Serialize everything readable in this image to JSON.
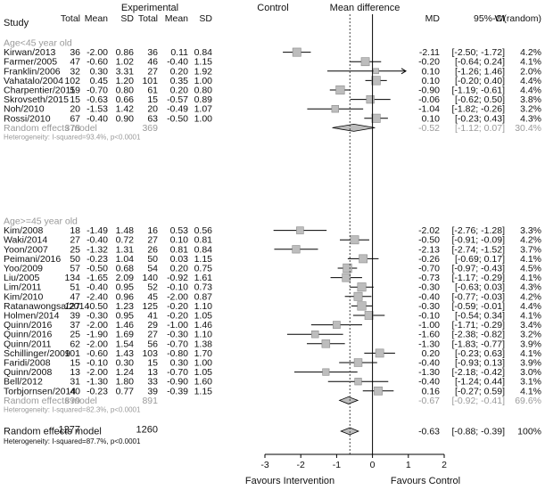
{
  "chart_data": {
    "type": "forest",
    "headers": {
      "study": "Study",
      "experimental": "Experimental",
      "control": "Control",
      "total": "Total",
      "mean": "Mean",
      "sd": "SD",
      "effect": "Mean difference",
      "md": "MD",
      "ci": "95%-CI",
      "weight": "W(random)"
    },
    "x_axis": {
      "ticks": [
        -3,
        -2,
        -1,
        0,
        1,
        2
      ],
      "range": [
        -3,
        2
      ],
      "left_label": "Favours Intervention",
      "right_label": "Favours Control"
    },
    "subgroups": [
      {
        "label": "Age<45 year old",
        "studies": [
          {
            "study": "Kirwan/2013",
            "e_total": "36",
            "e_mean": "-2.00",
            "e_sd": "0.86",
            "c_total": "36",
            "c_mean": "0.11",
            "c_sd": "0.84",
            "md": -2.11,
            "lo": -2.5,
            "hi": -1.72,
            "md_text": "-2.11",
            "ci_text": "[-2.50; -1.72]",
            "weight": "4.2%"
          },
          {
            "study": "Farmer/2005",
            "e_total": "47",
            "e_mean": "-0.60",
            "e_sd": "1.02",
            "c_total": "46",
            "c_mean": "-0.40",
            "c_sd": "1.15",
            "md": -0.2,
            "lo": -0.64,
            "hi": 0.24,
            "md_text": "-0.20",
            "ci_text": "[-0.64; 0.24]",
            "weight": "4.1%"
          },
          {
            "study": "Franklin/2006",
            "e_total": "32",
            "e_mean": "0.30",
            "e_sd": "3.31",
            "c_total": "27",
            "c_mean": "0.20",
            "c_sd": "1.92",
            "md": 0.1,
            "lo": -1.26,
            "hi": 1.46,
            "md_text": "0.10",
            "ci_text": "[-1.26; 1.46]",
            "weight": "2.0%"
          },
          {
            "study": "Vahatalo/2004",
            "e_total": "102",
            "e_mean": "0.45",
            "e_sd": "1.20",
            "c_total": "101",
            "c_mean": "0.35",
            "c_sd": "1.00",
            "md": 0.1,
            "lo": -0.2,
            "hi": 0.4,
            "md_text": "0.10",
            "ci_text": "[-0.20; 0.40]",
            "weight": "4.4%"
          },
          {
            "study": "Charpentier/2011",
            "e_total": "59",
            "e_mean": "-0.70",
            "e_sd": "0.80",
            "c_total": "61",
            "c_mean": "0.20",
            "c_sd": "0.80",
            "md": -0.9,
            "lo": -1.19,
            "hi": -0.61,
            "md_text": "-0.90",
            "ci_text": "[-1.19; -0.61]",
            "weight": "4.4%"
          },
          {
            "study": "Skrovseth/2015",
            "e_total": "15",
            "e_mean": "-0.63",
            "e_sd": "0.66",
            "c_total": "15",
            "c_mean": "-0.57",
            "c_sd": "0.89",
            "md": -0.06,
            "lo": -0.62,
            "hi": 0.5,
            "md_text": "-0.06",
            "ci_text": "[-0.62; 0.50]",
            "weight": "3.8%"
          },
          {
            "study": "Noh/2010",
            "e_total": "20",
            "e_mean": "-1.53",
            "e_sd": "1.42",
            "c_total": "20",
            "c_mean": "-0.49",
            "c_sd": "1.07",
            "md": -1.04,
            "lo": -1.82,
            "hi": -0.26,
            "md_text": "-1.04",
            "ci_text": "[-1.82; -0.26]",
            "weight": "3.2%"
          },
          {
            "study": "Rossi/2010",
            "e_total": "67",
            "e_mean": "-0.40",
            "e_sd": "0.90",
            "c_total": "63",
            "c_mean": "-0.50",
            "c_sd": "1.00",
            "md": 0.1,
            "lo": -0.23,
            "hi": 0.43,
            "md_text": "0.10",
            "ci_text": "[-0.23; 0.43]",
            "weight": "4.3%"
          }
        ],
        "summary": {
          "label": "Random effects model",
          "e_total": "378",
          "c_total": "369",
          "md": -0.52,
          "lo": -1.12,
          "hi": 0.07,
          "md_text": "-0.52",
          "ci_text": "[-1.12; 0.07]",
          "weight": "30.4%"
        },
        "heterogeneity": "Heterogeneity: I-squared=93.4%, p<0.0001"
      },
      {
        "label": "Age>=45 year old",
        "studies": [
          {
            "study": "Kim/2008",
            "e_total": "18",
            "e_mean": "-1.49",
            "e_sd": "1.48",
            "c_total": "16",
            "c_mean": "0.53",
            "c_sd": "0.56",
            "md": -2.02,
            "lo": -2.76,
            "hi": -1.28,
            "md_text": "-2.02",
            "ci_text": "[-2.76; -1.28]",
            "weight": "3.3%"
          },
          {
            "study": "Waki/2014",
            "e_total": "27",
            "e_mean": "-0.40",
            "e_sd": "0.72",
            "c_total": "27",
            "c_mean": "0.10",
            "c_sd": "0.81",
            "md": -0.5,
            "lo": -0.91,
            "hi": -0.09,
            "md_text": "-0.50",
            "ci_text": "[-0.91; -0.09]",
            "weight": "4.2%"
          },
          {
            "study": "Yoon/2007",
            "e_total": "25",
            "e_mean": "-1.32",
            "e_sd": "1.31",
            "c_total": "26",
            "c_mean": "0.81",
            "c_sd": "0.84",
            "md": -2.13,
            "lo": -2.74,
            "hi": -1.52,
            "md_text": "-2.13",
            "ci_text": "[-2.74; -1.52]",
            "weight": "3.7%"
          },
          {
            "study": "Peimani/2016",
            "e_total": "50",
            "e_mean": "-0.23",
            "e_sd": "1.04",
            "c_total": "50",
            "c_mean": "0.03",
            "c_sd": "1.15",
            "md": -0.26,
            "lo": -0.69,
            "hi": 0.17,
            "md_text": "-0.26",
            "ci_text": "[-0.69; 0.17]",
            "weight": "4.1%"
          },
          {
            "study": "Yoo/2009",
            "e_total": "57",
            "e_mean": "-0.50",
            "e_sd": "0.68",
            "c_total": "54",
            "c_mean": "0.20",
            "c_sd": "0.75",
            "md": -0.7,
            "lo": -0.97,
            "hi": -0.43,
            "md_text": "-0.70",
            "ci_text": "[-0.97; -0.43]",
            "weight": "4.5%"
          },
          {
            "study": "Liu/2005",
            "e_total": "134",
            "e_mean": "-1.65",
            "e_sd": "2.09",
            "c_total": "140",
            "c_mean": "-0.92",
            "c_sd": "1.61",
            "md": -0.73,
            "lo": -1.17,
            "hi": -0.29,
            "md_text": "-0.73",
            "ci_text": "[-1.17; -0.29]",
            "weight": "4.1%"
          },
          {
            "study": "Lim/2011",
            "e_total": "51",
            "e_mean": "-0.40",
            "e_sd": "0.95",
            "c_total": "52",
            "c_mean": "-0.10",
            "c_sd": "0.73",
            "md": -0.3,
            "lo": -0.63,
            "hi": 0.03,
            "md_text": "-0.30",
            "ci_text": "[-0.63; 0.03]",
            "weight": "4.3%"
          },
          {
            "study": "Kim/2010",
            "e_total": "47",
            "e_mean": "-2.40",
            "e_sd": "0.96",
            "c_total": "45",
            "c_mean": "-2.00",
            "c_sd": "0.87",
            "md": -0.4,
            "lo": -0.77,
            "hi": -0.03,
            "md_text": "-0.40",
            "ci_text": "[-0.77; -0.03]",
            "weight": "4.2%"
          },
          {
            "study": "Ratanawongsa/2014",
            "e_total": "127",
            "e_mean": "-0.50",
            "e_sd": "1.23",
            "c_total": "125",
            "c_mean": "-0.20",
            "c_sd": "1.10",
            "md": -0.3,
            "lo": -0.59,
            "hi": -0.01,
            "md_text": "-0.30",
            "ci_text": "[-0.59; -0.01]",
            "weight": "4.4%"
          },
          {
            "study": "Holmen/2014",
            "e_total": "39",
            "e_mean": "-0.30",
            "e_sd": "0.95",
            "c_total": "41",
            "c_mean": "-0.20",
            "c_sd": "1.05",
            "md": -0.1,
            "lo": -0.54,
            "hi": 0.34,
            "md_text": "-0.10",
            "ci_text": "[-0.54; 0.34]",
            "weight": "4.1%"
          },
          {
            "study": "Quinn/2016",
            "e_total": "37",
            "e_mean": "-2.00",
            "e_sd": "1.46",
            "c_total": "29",
            "c_mean": "-1.00",
            "c_sd": "1.46",
            "md": -1.0,
            "lo": -1.71,
            "hi": -0.29,
            "md_text": "-1.00",
            "ci_text": "[-1.71; -0.29]",
            "weight": "3.4%"
          },
          {
            "study": "Quinn/2016",
            "e_total": "25",
            "e_mean": "-1.90",
            "e_sd": "1.69",
            "c_total": "27",
            "c_mean": "-0.30",
            "c_sd": "1.10",
            "md": -1.6,
            "lo": -2.38,
            "hi": -0.82,
            "md_text": "-1.60",
            "ci_text": "[-2.38; -0.82]",
            "weight": "3.2%"
          },
          {
            "study": "Quinn/2011",
            "e_total": "62",
            "e_mean": "-2.00",
            "e_sd": "1.54",
            "c_total": "56",
            "c_mean": "-0.70",
            "c_sd": "1.38",
            "md": -1.3,
            "lo": -1.83,
            "hi": -0.77,
            "md_text": "-1.30",
            "ci_text": "[-1.83; -0.77]",
            "weight": "3.9%"
          },
          {
            "study": "Schillinger/2009",
            "e_total": "101",
            "e_mean": "-0.60",
            "e_sd": "1.43",
            "c_total": "103",
            "c_mean": "-0.80",
            "c_sd": "1.70",
            "md": 0.2,
            "lo": -0.23,
            "hi": 0.63,
            "md_text": "0.20",
            "ci_text": "[-0.23; 0.63]",
            "weight": "4.1%"
          },
          {
            "study": "Faridi/2008",
            "e_total": "15",
            "e_mean": "-0.10",
            "e_sd": "0.30",
            "c_total": "15",
            "c_mean": "0.30",
            "c_sd": "1.00",
            "md": -0.4,
            "lo": -0.93,
            "hi": 0.13,
            "md_text": "-0.40",
            "ci_text": "[-0.93; 0.13]",
            "weight": "3.9%"
          },
          {
            "study": "Quinn/2008",
            "e_total": "13",
            "e_mean": "-2.00",
            "e_sd": "1.24",
            "c_total": "13",
            "c_mean": "-0.70",
            "c_sd": "1.05",
            "md": -1.3,
            "lo": -2.18,
            "hi": -0.42,
            "md_text": "-1.30",
            "ci_text": "[-2.18; -0.42]",
            "weight": "3.0%"
          },
          {
            "study": "Bell/2012",
            "e_total": "31",
            "e_mean": "-1.30",
            "e_sd": "1.80",
            "c_total": "33",
            "c_mean": "-0.90",
            "c_sd": "1.60",
            "md": -0.4,
            "lo": -1.24,
            "hi": 0.44,
            "md_text": "-0.40",
            "ci_text": "[-1.24; 0.44]",
            "weight": "3.1%"
          },
          {
            "study": "Torbjornsen/2014",
            "e_total": "40",
            "e_mean": "-0.23",
            "e_sd": "0.77",
            "c_total": "39",
            "c_mean": "-0.39",
            "c_sd": "1.15",
            "md": 0.16,
            "lo": -0.27,
            "hi": 0.59,
            "md_text": "0.16",
            "ci_text": "[-0.27; 0.59]",
            "weight": "4.1%"
          }
        ],
        "summary": {
          "label": "Random effects model",
          "e_total": "899",
          "c_total": "891",
          "md": -0.67,
          "lo": -0.92,
          "hi": -0.41,
          "md_text": "-0.67",
          "ci_text": "[-0.92; -0.41]",
          "weight": "69.6%"
        },
        "heterogeneity": "Heterogeneity: I-squared=82.3%, p<0.0001"
      }
    ],
    "overall": {
      "label": "Random effects model",
      "e_total": "1277",
      "c_total": "1260",
      "md": -0.63,
      "lo": -0.88,
      "hi": -0.39,
      "md_text": "-0.63",
      "ci_text": "[-0.88; -0.39]",
      "weight": "100%",
      "heterogeneity": "Heterogeneity: I-squared=87.7%, p<0.0001"
    },
    "colors": {
      "text": "#111111",
      "subgroup_text": "#9a9a9a",
      "square_fill": "#bdbdbd",
      "square_stroke": "#8a8a8a"
    }
  }
}
